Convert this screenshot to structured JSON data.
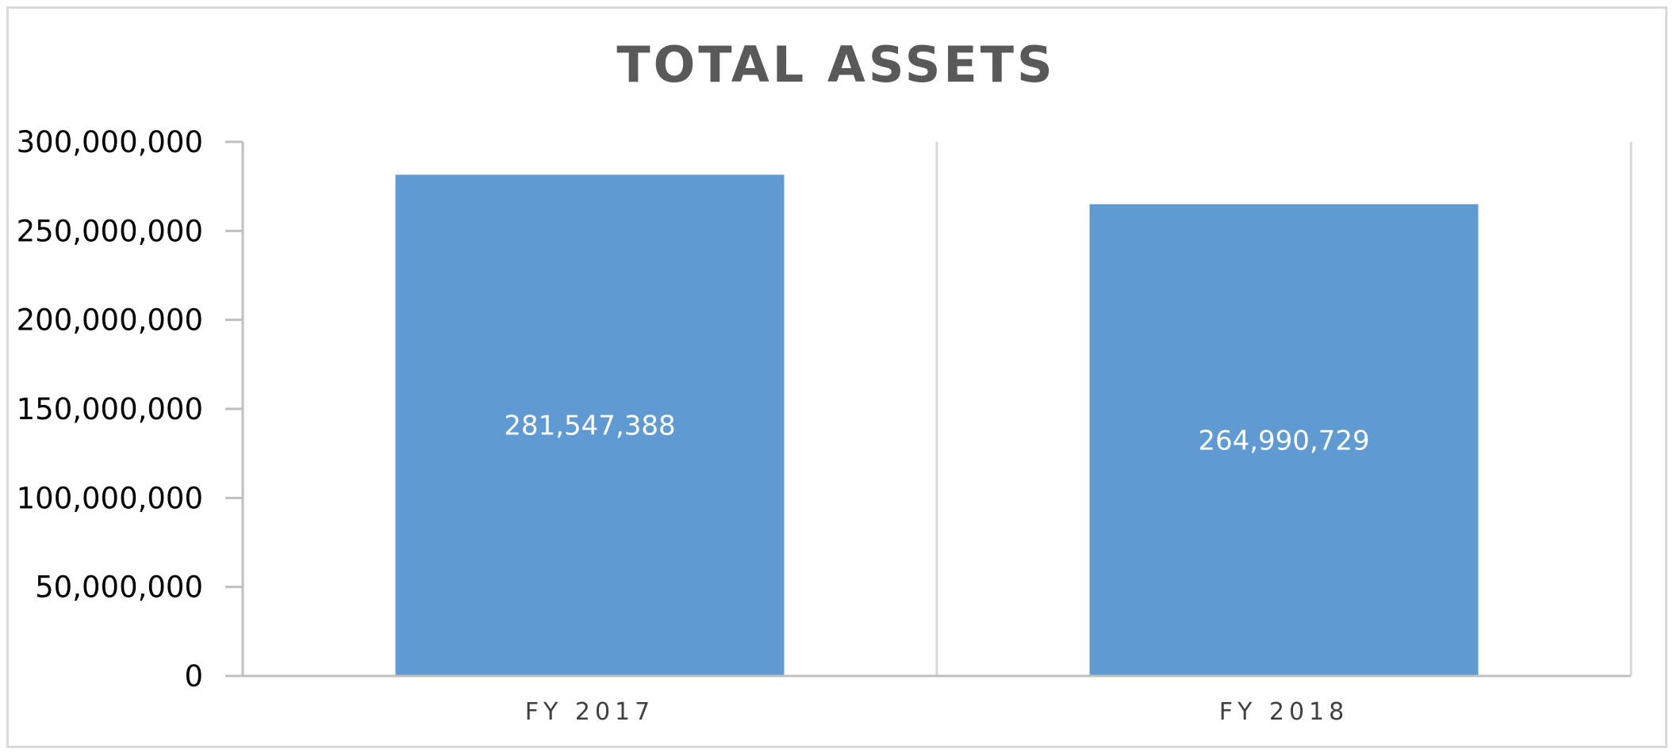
{
  "chart_data": {
    "type": "bar",
    "title": "TOTAL ASSETS",
    "xlabel": "",
    "ylabel": "",
    "categories": [
      "FY 2017",
      "FY 2018"
    ],
    "values": [
      281547388,
      264990729
    ],
    "data_labels": [
      "281,547,388",
      "264,990,729"
    ],
    "ylim": [
      0,
      300000000
    ],
    "yticks": [
      0,
      50000000,
      100000000,
      150000000,
      200000000,
      250000000,
      300000000
    ],
    "ytick_labels": [
      "0",
      "50,000,000",
      "100,000,000",
      "150,000,000",
      "200,000,000",
      "250,000,000",
      "300,000,000"
    ],
    "grid": "vertical category separators",
    "legend": "none",
    "colors": {
      "bar": "#5f9ad2",
      "title": "#595959",
      "grid": "#d9d9d9",
      "axis": "#bfbfbf",
      "data_label": "#ffffff"
    }
  }
}
